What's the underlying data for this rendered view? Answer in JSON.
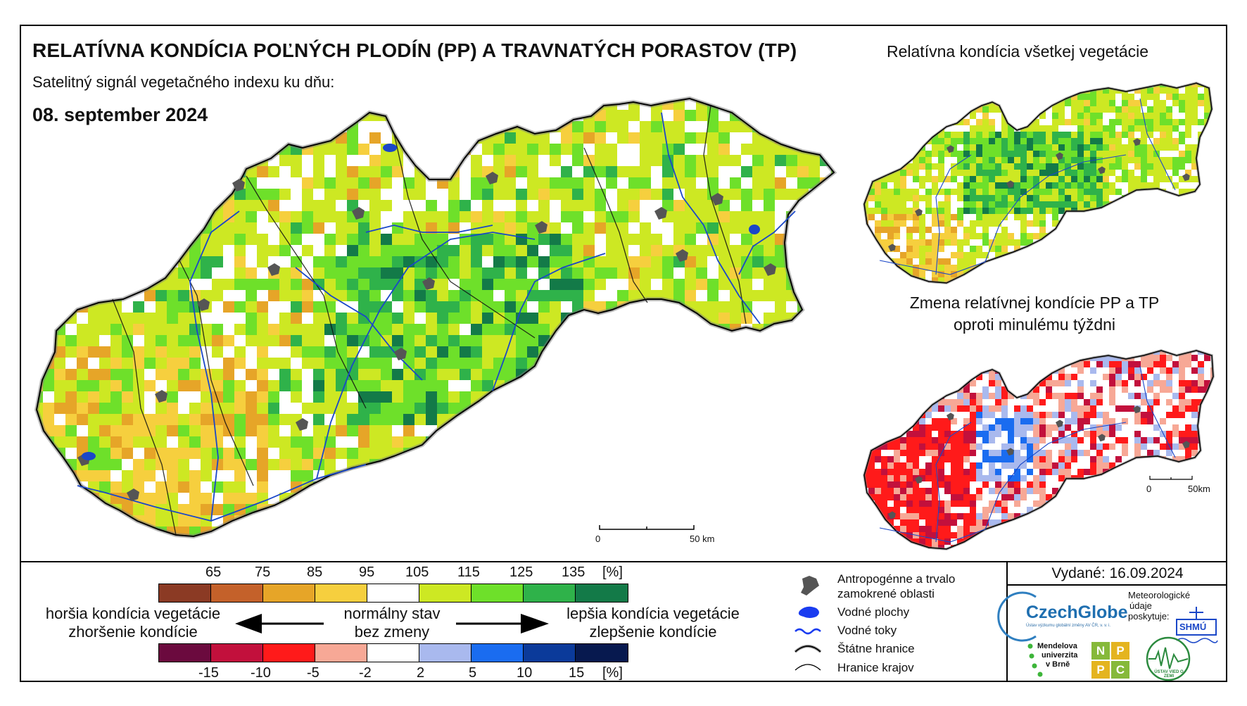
{
  "header": {
    "title": "RELATÍVNA KONDÍCIA POĽNÝCH PLODÍN (PP) A TRAVNATÝCH PORASTOV (TP)",
    "subtitle": "Satelitný signál vegetačného indexu ku dňu:",
    "date": "08. september 2024"
  },
  "insets": {
    "top_title": "Relatívna kondícia všetkej vegetácie",
    "bottom_title_line1": "Zmena relatívnej kondície PP a TP",
    "bottom_title_line2": "oproti minulému týždni"
  },
  "scalebar": {
    "main_zero": "0",
    "main_fifty": "50 km",
    "inset_zero": "0",
    "inset_fifty": "50km"
  },
  "legend": {
    "condition_ticks": [
      "65",
      "75",
      "85",
      "95",
      "105",
      "115",
      "125",
      "135",
      "[%]"
    ],
    "condition_colors": [
      "#8b3a24",
      "#c4612a",
      "#e6a528",
      "#f6cf3e",
      "#ffffff",
      "#cde823",
      "#6ee02a",
      "#2fb24a",
      "#137a48"
    ],
    "change_ticks": [
      "-15",
      "-10",
      "-5",
      "-2",
      "2",
      "5",
      "10",
      "15",
      "[%]"
    ],
    "change_colors": [
      "#6b0a3e",
      "#c2103c",
      "#ff1a1a",
      "#f7a896",
      "#ffffff",
      "#a9b9ee",
      "#1a6cf0",
      "#0b3a9a",
      "#07194f"
    ],
    "worse_line1": "horšia kondícia vegetácie",
    "worse_line2": "zhoršenie kondície",
    "normal_line1": "normálny stav",
    "normal_line2": "bez zmeny",
    "better_line1": "lepšia kondícia vegetácie",
    "better_line2": "zlepšenie kondície"
  },
  "symbols": {
    "anthropogenic_line1": "Antropogénne a trvalo",
    "anthropogenic_line2": "zamokrené oblasti",
    "water_bodies": "Vodné plochy",
    "water_streams": "Vodné toky",
    "state_borders": "Štátne hranice",
    "region_borders": "Hranice krajov"
  },
  "footer": {
    "issued": "Vydané: 16.09.2024",
    "czechglobe": "CzechGlobe",
    "czechglobe_small": "Ústav výzkumu globální změny AV ČR, v. v. i.",
    "meteo_line1": "Meteorologické",
    "meteo_line2": "údaje",
    "meteo_line3": "poskytuje:",
    "shmu": "SHMÚ",
    "mendel_line1": "Mendelova",
    "mendel_line2": "univerzita",
    "mendel_line3": "v Brně",
    "nppc": [
      "N",
      "P",
      "P",
      "C"
    ],
    "uvz": "ÚSTAV VIED O ZEMI"
  },
  "colors": {
    "border": "#000000",
    "river": "#1a47c8",
    "urban": "#555555"
  }
}
